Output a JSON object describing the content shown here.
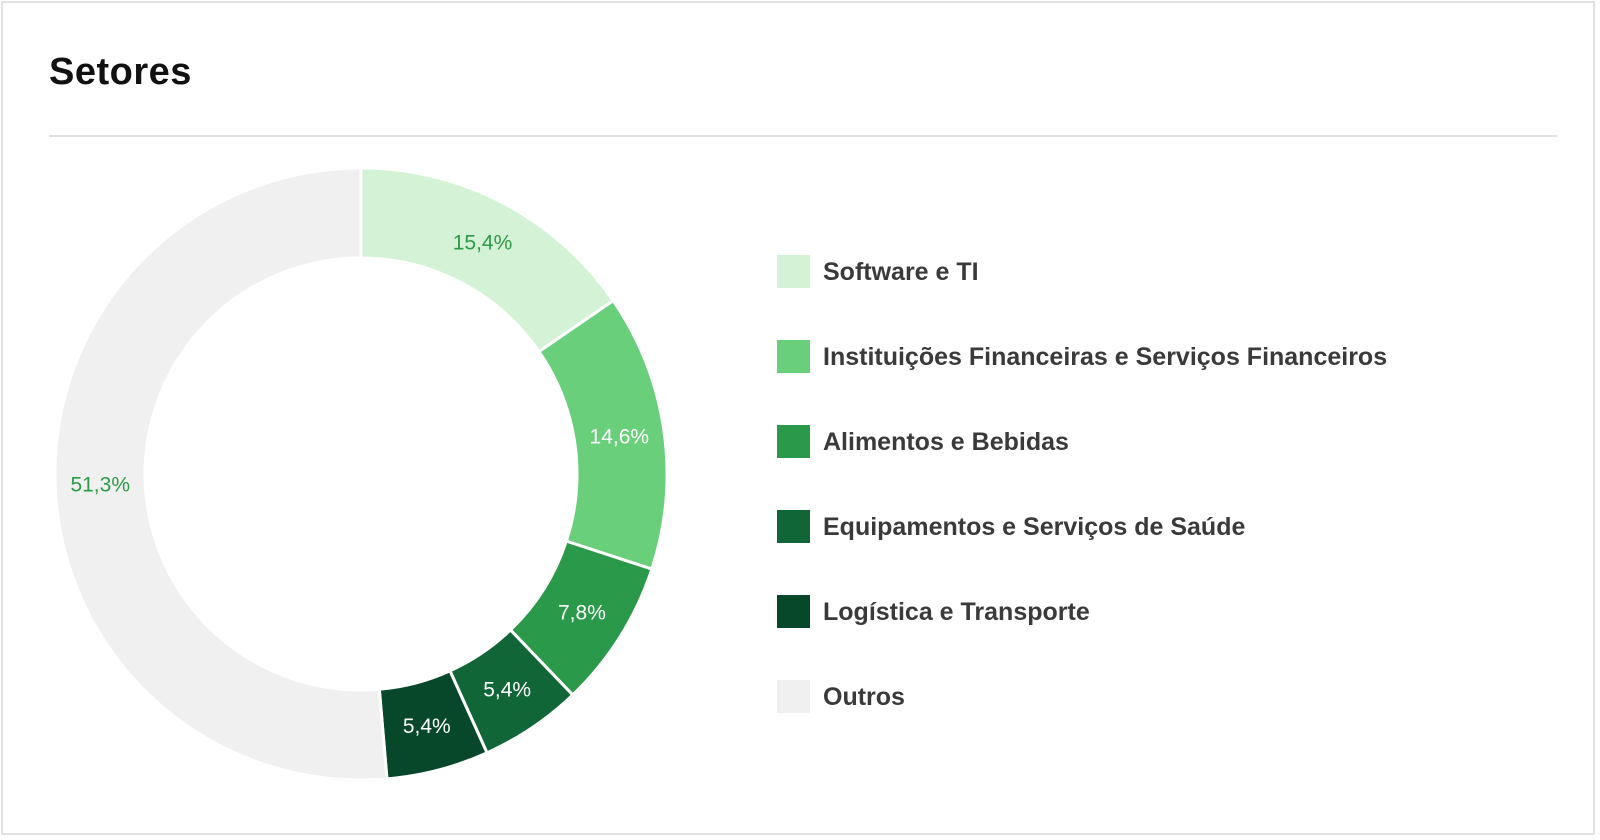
{
  "header": {
    "title": "Setores"
  },
  "chart_data": {
    "type": "pie",
    "variant": "donut",
    "title": "Setores",
    "categories": [
      "Software e TI",
      "Instituições Financeiras e Serviços Financeiros",
      "Alimentos e Bebidas",
      "Equipamentos e Serviços de Saúde",
      "Logística e Transporte",
      "Outros"
    ],
    "values": [
      15.4,
      14.6,
      7.8,
      5.4,
      5.4,
      51.3
    ],
    "value_labels": [
      "15,4%",
      "14,6%",
      "7,8%",
      "5,4%",
      "5,4%",
      "51,3%"
    ],
    "colors": [
      "#d3f2d6",
      "#69cf7b",
      "#2a9949",
      "#116638",
      "#08482a",
      "#f0f0f0"
    ],
    "label_colors": [
      "#2e9a48",
      "#ffffff",
      "#ffffff",
      "#ffffff",
      "#ffffff",
      "#2e9a48"
    ],
    "legend_position": "right"
  }
}
